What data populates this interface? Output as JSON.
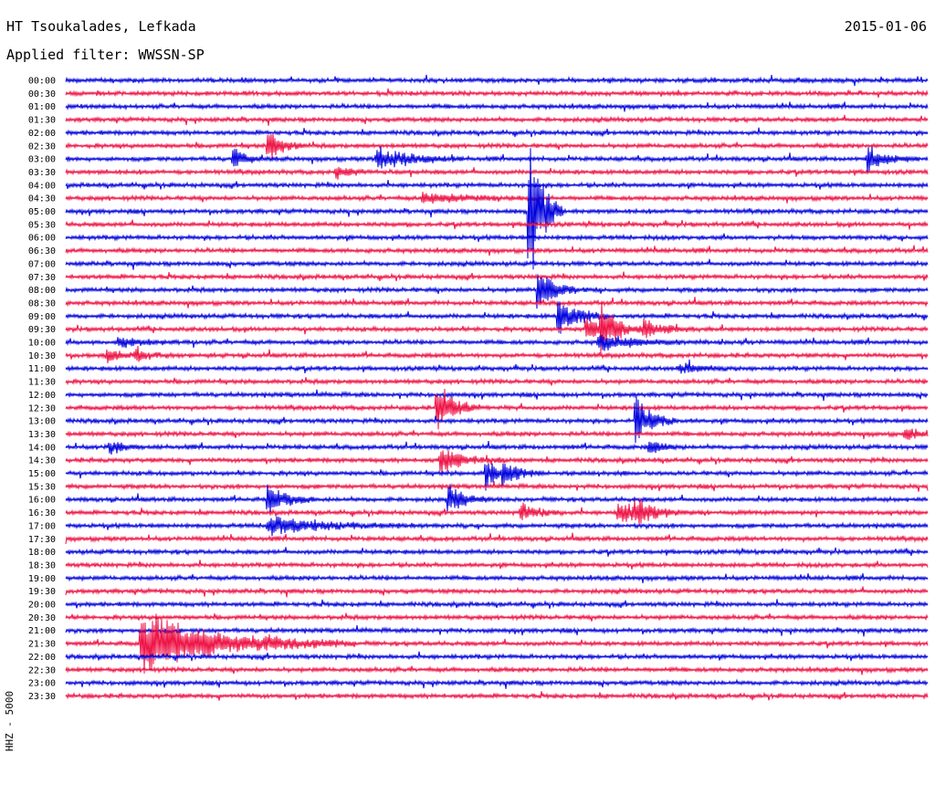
{
  "header": {
    "station": "HT Tsoukalades, Lefkada",
    "filter": "Applied filter: WWSSN-SP",
    "date": "2015-01-06"
  },
  "chart_data": {
    "type": "line",
    "title": "HT Tsoukalades, Lefkada",
    "subtitle": "Applied filter: WWSSN-SP",
    "ylabel": "HHZ - 5000",
    "date": "2015-01-06",
    "trace_colors": [
      "#0000dd",
      "#ee1144"
    ],
    "rows": [
      "00:00",
      "00:30",
      "01:00",
      "01:30",
      "02:00",
      "02:30",
      "03:00",
      "03:30",
      "04:00",
      "04:30",
      "05:00",
      "05:30",
      "06:00",
      "06:30",
      "07:00",
      "07:30",
      "08:00",
      "08:30",
      "09:00",
      "09:30",
      "10:00",
      "10:30",
      "11:00",
      "11:30",
      "12:00",
      "12:30",
      "13:00",
      "13:30",
      "14:00",
      "14:30",
      "15:00",
      "15:30",
      "16:00",
      "16:30",
      "17:00",
      "17:30",
      "18:00",
      "18:30",
      "19:00",
      "19:30",
      "20:00",
      "20:30",
      "21:00",
      "21:30",
      "22:00",
      "22:30",
      "23:00",
      "23:30"
    ],
    "row_minutes": 30,
    "events": [
      {
        "row": "02:30",
        "minute": 7.0,
        "amplitude": 1.5,
        "duration": 0.5
      },
      {
        "row": "03:00",
        "minute": 5.8,
        "amplitude": 1.0,
        "duration": 0.4
      },
      {
        "row": "03:00",
        "minute": 10.8,
        "amplitude": 1.2,
        "duration": 1.0
      },
      {
        "row": "03:00",
        "minute": 27.9,
        "amplitude": 1.2,
        "duration": 0.6
      },
      {
        "row": "03:30",
        "minute": 9.4,
        "amplitude": 0.8,
        "duration": 0.4
      },
      {
        "row": "04:30",
        "minute": 12.4,
        "amplitude": 0.5,
        "duration": 1.5
      },
      {
        "row": "05:00",
        "minute": 16.1,
        "amplitude": 9.5,
        "duration": 0.4
      },
      {
        "row": "08:00",
        "minute": 16.4,
        "amplitude": 2.5,
        "duration": 0.5
      },
      {
        "row": "09:00",
        "minute": 17.1,
        "amplitude": 2.0,
        "duration": 0.6
      },
      {
        "row": "09:30",
        "minute": 18.6,
        "amplitude": 2.0,
        "duration": 0.6
      },
      {
        "row": "09:30",
        "minute": 18.1,
        "amplitude": 1.5,
        "duration": 0.5
      },
      {
        "row": "09:30",
        "minute": 20.1,
        "amplitude": 1.0,
        "duration": 0.6
      },
      {
        "row": "10:00",
        "minute": 1.8,
        "amplitude": 0.6,
        "duration": 0.7
      },
      {
        "row": "10:00",
        "minute": 18.5,
        "amplitude": 0.8,
        "duration": 1.0
      },
      {
        "row": "10:30",
        "minute": 1.4,
        "amplitude": 0.8,
        "duration": 0.4
      },
      {
        "row": "10:30",
        "minute": 2.4,
        "amplitude": 0.7,
        "duration": 0.4
      },
      {
        "row": "11:00",
        "minute": 21.3,
        "amplitude": 0.5,
        "duration": 0.8
      },
      {
        "row": "12:30",
        "minute": 12.9,
        "amplitude": 2.5,
        "duration": 0.5
      },
      {
        "row": "13:00",
        "minute": 19.8,
        "amplitude": 2.5,
        "duration": 0.5
      },
      {
        "row": "13:30",
        "minute": 29.2,
        "amplitude": 0.6,
        "duration": 0.5
      },
      {
        "row": "14:00",
        "minute": 1.5,
        "amplitude": 0.8,
        "duration": 0.4
      },
      {
        "row": "14:00",
        "minute": 20.3,
        "amplitude": 0.8,
        "duration": 0.4
      },
      {
        "row": "14:30",
        "minute": 13.0,
        "amplitude": 1.2,
        "duration": 0.8
      },
      {
        "row": "15:00",
        "minute": 14.6,
        "amplitude": 1.5,
        "duration": 0.5
      },
      {
        "row": "15:00",
        "minute": 15.2,
        "amplitude": 1.0,
        "duration": 0.5
      },
      {
        "row": "16:00",
        "minute": 7.0,
        "amplitude": 1.5,
        "duration": 0.6
      },
      {
        "row": "16:00",
        "minute": 13.3,
        "amplitude": 1.5,
        "duration": 0.5
      },
      {
        "row": "16:30",
        "minute": 15.8,
        "amplitude": 1.0,
        "duration": 0.5
      },
      {
        "row": "16:30",
        "minute": 19.2,
        "amplitude": 1.0,
        "duration": 1.0
      },
      {
        "row": "16:30",
        "minute": 19.8,
        "amplitude": 0.8,
        "duration": 0.5
      },
      {
        "row": "17:00",
        "minute": 7.0,
        "amplitude": 0.9,
        "duration": 1.8
      },
      {
        "row": "21:30",
        "minute": 2.6,
        "amplitude": 3.0,
        "duration": 2.5
      }
    ]
  }
}
